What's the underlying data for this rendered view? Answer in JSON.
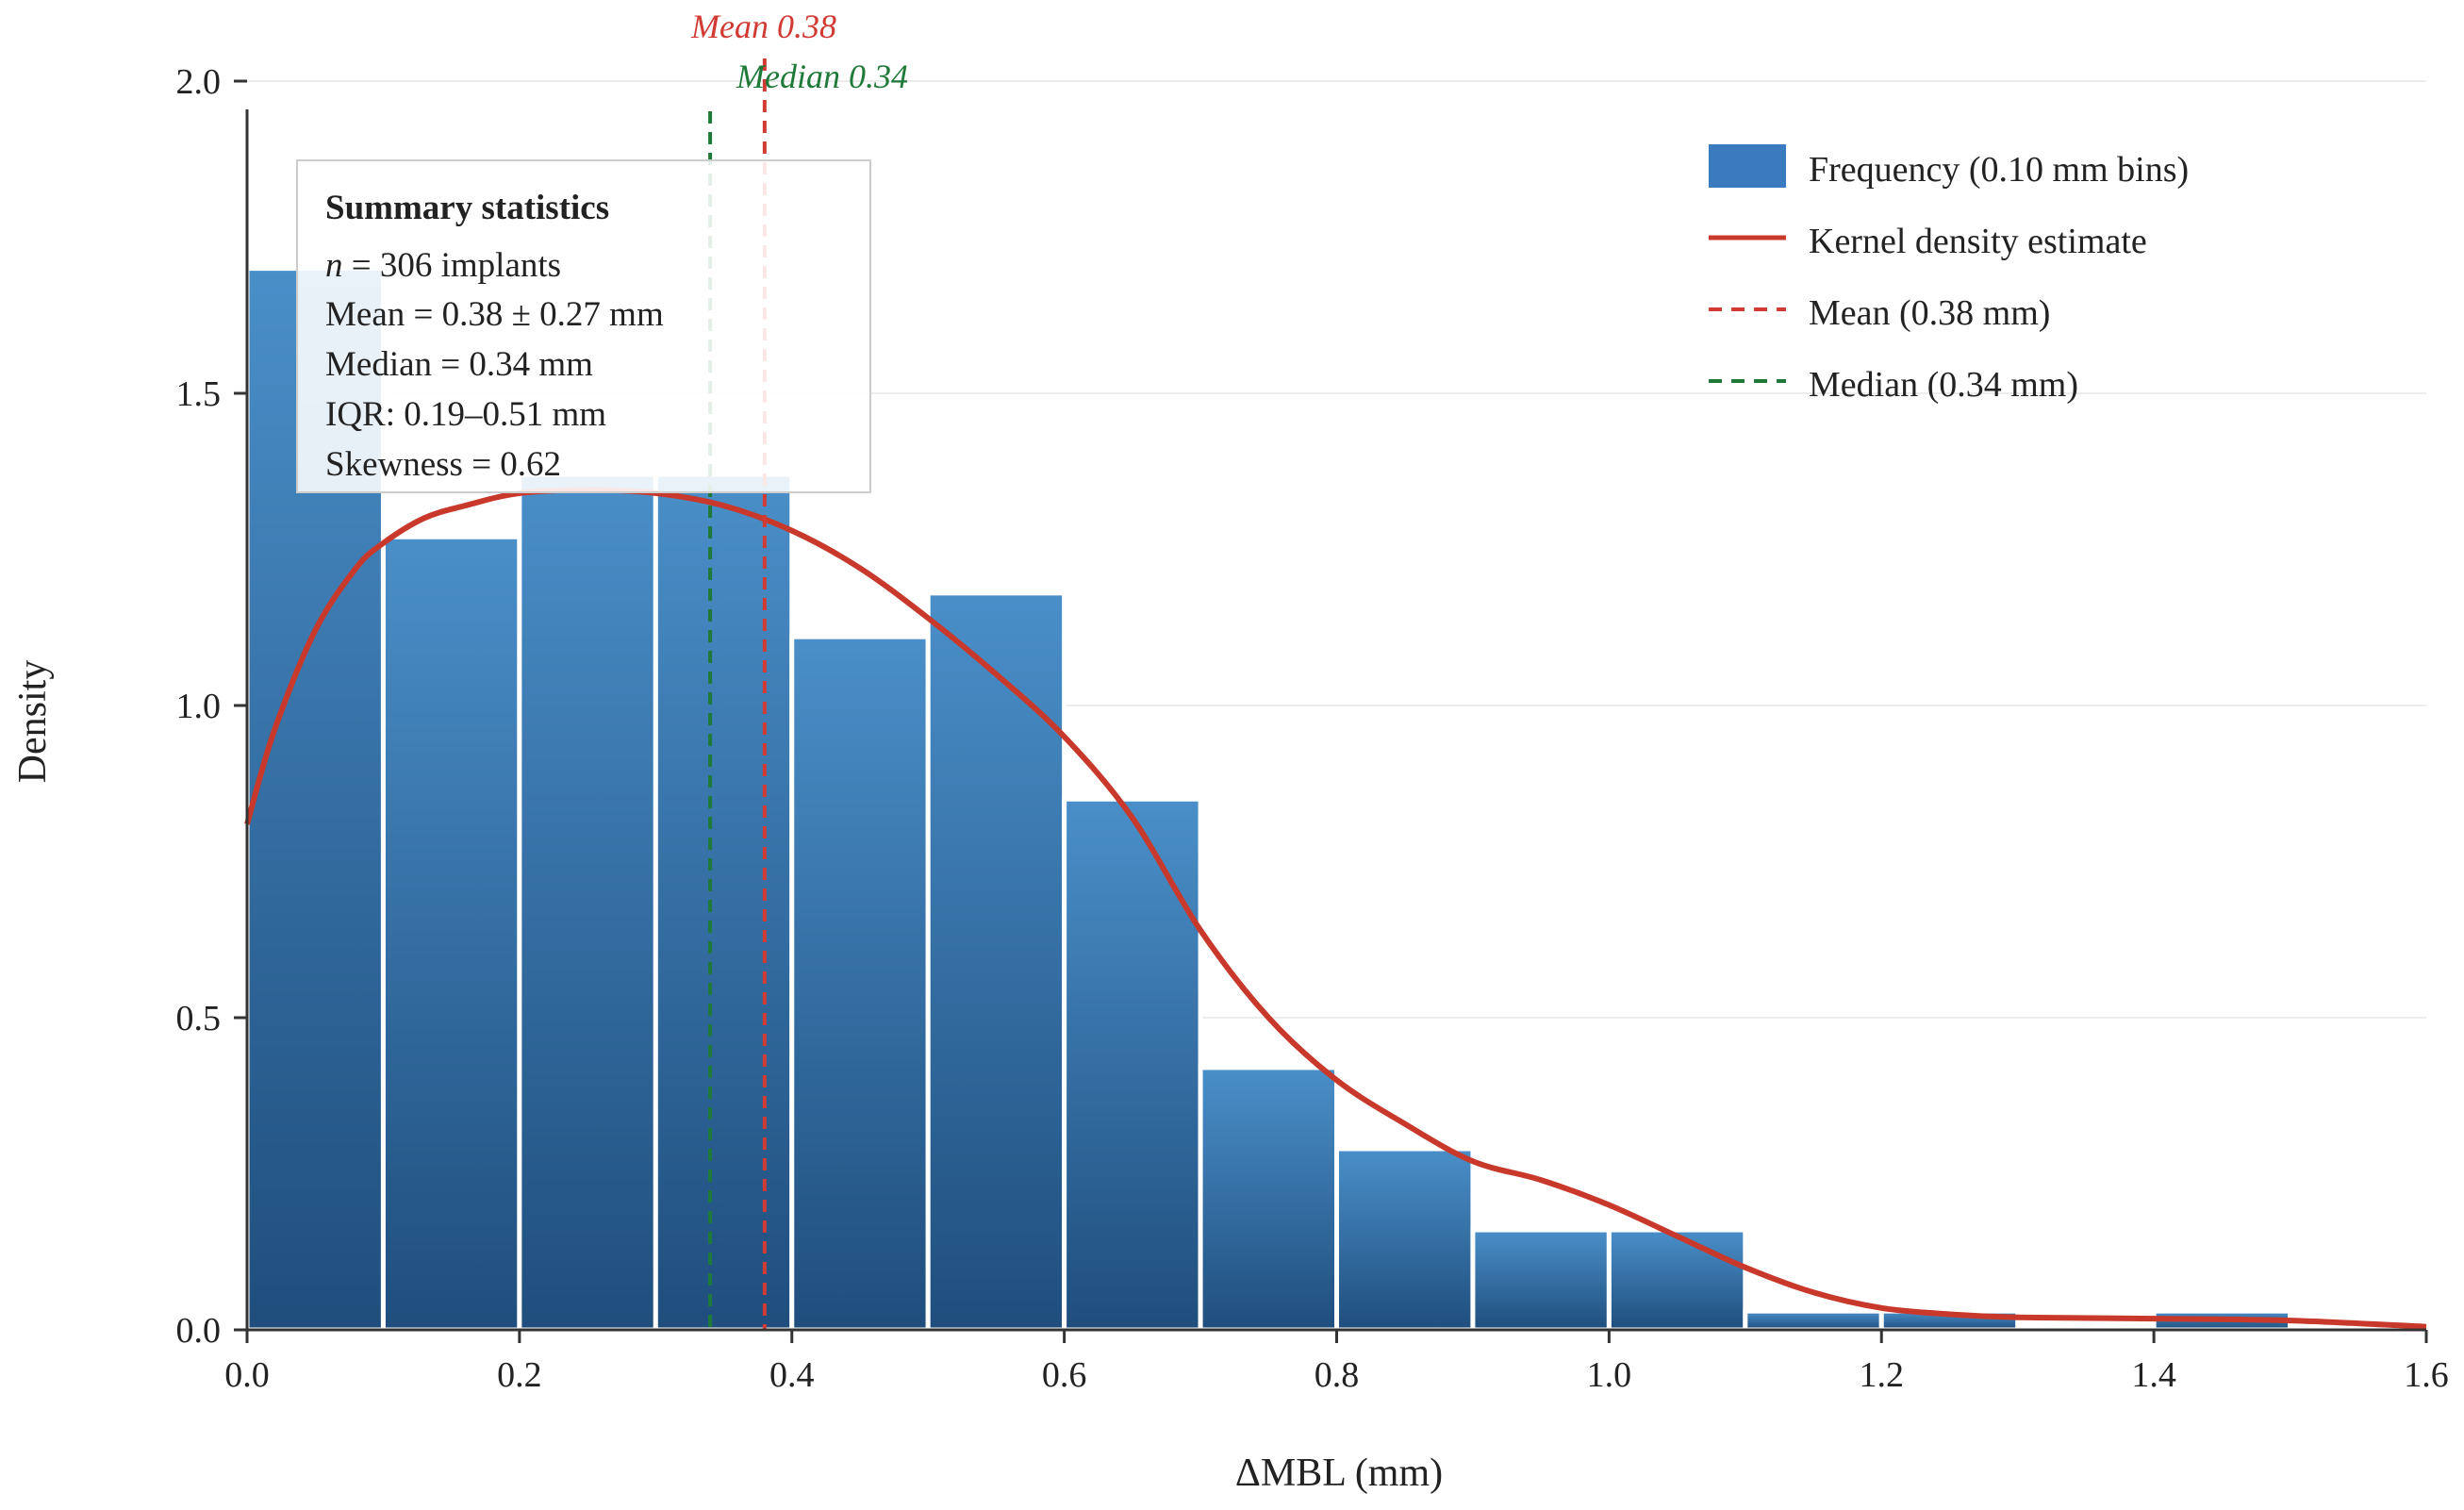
{
  "chart_data": {
    "type": "bar",
    "xlabel": "ΔMBL (mm)",
    "ylabel": "Density",
    "xlim": [
      0.0,
      1.6
    ],
    "ylim": [
      0.0,
      2.0
    ],
    "x_ticks": [
      "0.0",
      "0.2",
      "0.4",
      "0.6",
      "0.8",
      "1.0",
      "1.2",
      "1.4",
      "1.6"
    ],
    "y_ticks": [
      "0.0",
      "0.5",
      "1.0",
      "1.5",
      "2.0"
    ],
    "grid": "horizontal",
    "legend_position": "top-right",
    "histogram": {
      "name": "Frequency (0.10 mm bins)",
      "bin_edges": [
        0.0,
        0.1,
        0.2,
        0.3,
        0.4,
        0.5,
        0.6,
        0.7,
        0.8,
        0.9,
        1.0,
        1.1,
        1.2,
        1.3,
        1.4,
        1.5
      ],
      "values": [
        1.7,
        1.27,
        1.37,
        1.37,
        1.11,
        1.18,
        0.85,
        0.42,
        0.29,
        0.16,
        0.16,
        0.03,
        0.03,
        0.0,
        0.03
      ],
      "color": "#3a7bbf"
    },
    "kde": {
      "name": "Kernel density estimate",
      "color": "#c8392b",
      "x": [
        0.0,
        0.02,
        0.05,
        0.08,
        0.1,
        0.13,
        0.16,
        0.2,
        0.25,
        0.3,
        0.35,
        0.4,
        0.45,
        0.5,
        0.55,
        0.6,
        0.65,
        0.7,
        0.75,
        0.8,
        0.85,
        0.9,
        0.95,
        1.0,
        1.05,
        1.1,
        1.15,
        1.2,
        1.25,
        1.3,
        1.4,
        1.5,
        1.6
      ],
      "y": [
        0.81,
        0.96,
        1.12,
        1.22,
        1.26,
        1.3,
        1.32,
        1.34,
        1.345,
        1.34,
        1.32,
        1.28,
        1.22,
        1.14,
        1.05,
        0.95,
        0.82,
        0.64,
        0.5,
        0.4,
        0.33,
        0.27,
        0.24,
        0.2,
        0.15,
        0.1,
        0.06,
        0.035,
        0.025,
        0.02,
        0.018,
        0.015,
        0.005
      ]
    },
    "mean": {
      "name": "Mean (0.38 mm)",
      "value": 0.38,
      "annotation": "Mean 0.38",
      "color": "#d23b34"
    },
    "median": {
      "name": "Median (0.34 mm)",
      "value": 0.34,
      "annotation": "Median 0.34",
      "color": "#1f7a3a"
    },
    "summary": {
      "title": "Summary statistics",
      "n_symbol": "n",
      "n_text": " = 306 implants",
      "lines": [
        "Mean = 0.38 ± 0.27 mm",
        "Median = 0.34 mm",
        "IQR: 0.19–0.51 mm",
        "Skewness = 0.62"
      ]
    }
  }
}
